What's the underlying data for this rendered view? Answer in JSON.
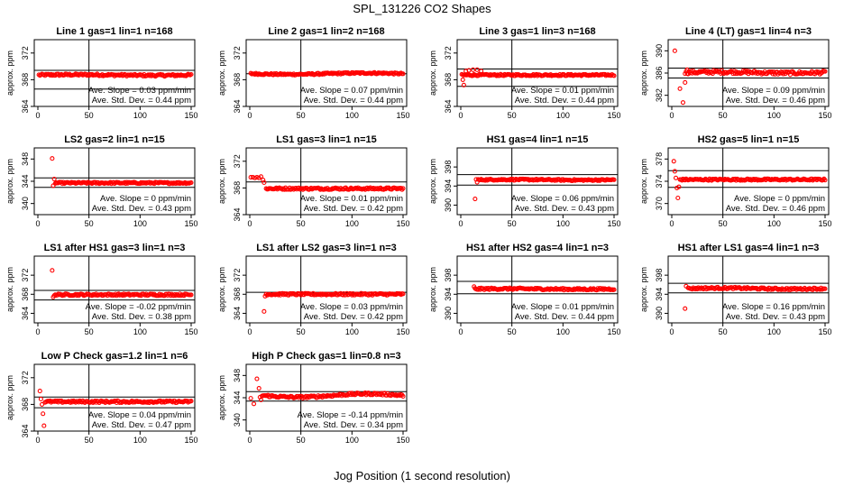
{
  "figure": {
    "title": "SPL_131226  CO2 Shapes",
    "xlabel": "Jog Position (1 second resolution)"
  },
  "chart_data": [
    {
      "type": "scatter",
      "title": "Line 1 gas=1 lin=1 n=168",
      "ylabel": "approx. ppm",
      "xlim": [
        0,
        150
      ],
      "ylim": [
        364,
        374
      ],
      "yticks": [
        364,
        368,
        372
      ],
      "xticks": [
        0,
        50,
        100,
        150
      ],
      "vline": 50,
      "hlines": [
        369.4,
        366.6
      ],
      "color": "#ff0000",
      "slope": "Ave. Slope = 0.03 ppm/min",
      "stddev": "Ave. Std. Dev. = 0.44 ppm",
      "series": [
        {
          "x0": 1,
          "x1": 150,
          "base": 368.7,
          "noise": 0.15,
          "drift": 0.05,
          "spikes": []
        }
      ]
    },
    {
      "type": "scatter",
      "title": "Line 2 gas=1 lin=2 n=168",
      "ylabel": "approx. ppm",
      "xlim": [
        0,
        150
      ],
      "ylim": [
        364,
        374
      ],
      "yticks": [
        364,
        368,
        372
      ],
      "xticks": [
        0,
        50,
        100,
        150
      ],
      "vline": 50,
      "hlines": [
        368.9,
        null
      ],
      "color": "#ff0000",
      "slope": "Ave. Slope = 0.07 ppm/min",
      "stddev": "Ave. Std. Dev. = 0.44 ppm",
      "series": [
        {
          "x0": 1,
          "x1": 150,
          "base": 368.9,
          "noise": 0.12,
          "drift": -0.1,
          "spikes": []
        }
      ]
    },
    {
      "type": "scatter",
      "title": "Line 3 gas=1 lin=3 n=168",
      "ylabel": "approx. ppm",
      "xlim": [
        0,
        150
      ],
      "ylim": [
        364,
        374
      ],
      "yticks": [
        364,
        368,
        372
      ],
      "xticks": [
        0,
        50,
        100,
        150
      ],
      "vline": 50,
      "hlines": [
        369.6,
        367.0
      ],
      "color": "#ff0000",
      "slope": "Ave. Slope = 0.01 ppm/min",
      "stddev": "Ave. Std. Dev. = 0.44 ppm",
      "series": [
        {
          "x0": 1,
          "x1": 150,
          "base": 368.7,
          "noise": 0.12,
          "drift": 0,
          "spikes": [
            [
              2,
              368.0
            ],
            [
              3,
              367.2
            ],
            [
              5,
              369.3
            ],
            [
              8,
              369.4
            ],
            [
              12,
              369.5
            ],
            [
              16,
              369.5
            ],
            [
              20,
              369.3
            ]
          ]
        }
      ]
    },
    {
      "type": "scatter",
      "title": "Line 4 (LT) gas=1 lin=4 n=3",
      "ylabel": "approx. ppm",
      "xlim": [
        0,
        150
      ],
      "ylim": [
        380,
        392
      ],
      "yticks": [
        382,
        386,
        390
      ],
      "xticks": [
        0,
        50,
        100,
        150
      ],
      "vline": 50,
      "hlines": [
        386.9,
        385.1
      ],
      "color": "#ff0000",
      "slope": "Ave. Slope = 0.09 ppm/min",
      "stddev": "Ave. Std. Dev. = 0.46 ppm",
      "series": [
        {
          "x0": 13,
          "x1": 150,
          "base": 386.1,
          "noise": 0.3,
          "drift": 0.1,
          "spikes": [
            [
              3,
              390.0
            ],
            [
              8,
              383.2
            ],
            [
              11,
              380.7
            ],
            [
              13,
              384.3
            ],
            [
              15,
              386.6
            ]
          ]
        }
      ]
    },
    {
      "type": "scatter",
      "title": "LS2 gas=2 lin=1 n=15",
      "ylabel": "approx. ppm",
      "xlim": [
        0,
        150
      ],
      "ylim": [
        338,
        350
      ],
      "yticks": [
        340,
        344,
        348
      ],
      "xticks": [
        0,
        50,
        100,
        150
      ],
      "vline": 50,
      "hlines": [
        344.6,
        342.9
      ],
      "color": "#ff0000",
      "slope": "Ave. Slope = 0 ppm/min",
      "stddev": "Ave. Std. Dev. = 0.43 ppm",
      "series": [
        {
          "x0": 17,
          "x1": 150,
          "base": 343.7,
          "noise": 0.15,
          "drift": 0,
          "spikes": [
            [
              14,
              348.1
            ],
            [
              15,
              343.2
            ],
            [
              16,
              344.4
            ]
          ]
        }
      ]
    },
    {
      "type": "scatter",
      "title": "LS1 gas=3 lin=1 n=15",
      "ylabel": "approx. ppm",
      "xlim": [
        0,
        150
      ],
      "ylim": [
        364,
        374
      ],
      "yticks": [
        364,
        368,
        372
      ],
      "xticks": [
        0,
        50,
        100,
        150
      ],
      "vline": 50,
      "hlines": [
        368.9,
        null
      ],
      "color": "#ff0000",
      "slope": "Ave. Slope = 0.01 ppm/min",
      "stddev": "Ave. Std. Dev. = 0.42 ppm",
      "series": [
        {
          "x0": 16,
          "x1": 150,
          "base": 367.9,
          "noise": 0.15,
          "drift": 0,
          "spikes": [
            [
              1,
              369.6
            ],
            [
              3,
              369.6
            ],
            [
              5,
              369.5
            ],
            [
              7,
              369.6
            ],
            [
              9,
              369.5
            ],
            [
              11,
              369.7
            ],
            [
              13,
              369.2
            ],
            [
              14,
              368.8
            ]
          ]
        }
      ]
    },
    {
      "type": "scatter",
      "title": "HS1 gas=4 lin=1 n=15",
      "ylabel": "approx. ppm",
      "xlim": [
        0,
        150
      ],
      "ylim": [
        388,
        402
      ],
      "yticks": [
        390,
        394,
        398
      ],
      "xticks": [
        0,
        50,
        100,
        150
      ],
      "vline": 50,
      "hlines": [
        396.4,
        394.2
      ],
      "color": "#ff0000",
      "slope": "Ave. Slope = 0.06 ppm/min",
      "stddev": "Ave. Std. Dev. = 0.43 ppm",
      "series": [
        {
          "x0": 17,
          "x1": 150,
          "base": 395.3,
          "noise": 0.15,
          "drift": 0.05,
          "spikes": [
            [
              14,
              391.3
            ],
            [
              15,
              395.4
            ],
            [
              16,
              394.8
            ]
          ]
        }
      ]
    },
    {
      "type": "scatter",
      "title": "HS2 gas=5 lin=1 n=15",
      "ylabel": "approx. ppm",
      "xlim": [
        0,
        150
      ],
      "ylim": [
        368,
        380
      ],
      "yticks": [
        370,
        374,
        378
      ],
      "xticks": [
        0,
        50,
        100,
        150
      ],
      "vline": 50,
      "hlines": [
        375.9,
        372.9
      ],
      "color": "#ff0000",
      "slope": "Ave. Slope = 0 ppm/min",
      "stddev": "Ave. Std. Dev. = 0.46 ppm",
      "series": [
        {
          "x0": 8,
          "x1": 150,
          "base": 374.3,
          "noise": 0.15,
          "drift": 0,
          "spikes": [
            [
              2,
              377.6
            ],
            [
              3,
              375.8
            ],
            [
              4,
              374.6
            ],
            [
              5,
              372.8
            ],
            [
              6,
              371.0
            ],
            [
              7,
              373.0
            ]
          ]
        }
      ]
    },
    {
      "type": "scatter",
      "title": "LS1 after HS1 gas=3 lin=1 n=3",
      "ylabel": "approx. ppm",
      "xlim": [
        0,
        150
      ],
      "ylim": [
        362,
        376
      ],
      "yticks": [
        364,
        368,
        372
      ],
      "xticks": [
        0,
        50,
        100,
        150
      ],
      "vline": 50,
      "hlines": [
        368.8,
        366.8
      ],
      "color": "#ff0000",
      "slope": "Ave. Slope = -0.02 ppm/min",
      "stddev": "Ave. Std. Dev. = 0.38 ppm",
      "series": [
        {
          "x0": 16,
          "x1": 150,
          "base": 367.9,
          "noise": 0.2,
          "drift": 0,
          "spikes": [
            [
              14,
              373.0
            ],
            [
              15,
              367.4
            ]
          ]
        }
      ]
    },
    {
      "type": "scatter",
      "title": "LS1 after LS2 gas=3 lin=1 n=3",
      "ylabel": "approx. ppm",
      "xlim": [
        0,
        150
      ],
      "ylim": [
        362,
        376
      ],
      "yticks": [
        364,
        368,
        372
      ],
      "xticks": [
        0,
        50,
        100,
        150
      ],
      "vline": 50,
      "hlines": [
        368.4,
        null
      ],
      "color": "#ff0000",
      "slope": "Ave. Slope = 0.03 ppm/min",
      "stddev": "Ave. Std. Dev. = 0.42 ppm",
      "series": [
        {
          "x0": 16,
          "x1": 150,
          "base": 368.0,
          "noise": 0.2,
          "drift": 0,
          "spikes": [
            [
              14,
              364.4
            ],
            [
              15,
              367.6
            ]
          ]
        }
      ]
    },
    {
      "type": "scatter",
      "title": "HS1 after HS2 gas=4 lin=1 n=3",
      "ylabel": "approx. ppm",
      "xlim": [
        0,
        150
      ],
      "ylim": [
        388,
        402
      ],
      "yticks": [
        390,
        394,
        398
      ],
      "xticks": [
        0,
        50,
        100,
        150
      ],
      "vline": 50,
      "hlines": [
        396.7,
        394.1
      ],
      "color": "#ff0000",
      "slope": "Ave. Slope = 0.01 ppm/min",
      "stddev": "Ave. Std. Dev. = 0.44 ppm",
      "series": [
        {
          "x0": 14,
          "x1": 150,
          "base": 395.1,
          "noise": 0.2,
          "drift": 0.05,
          "spikes": [
            [
              13,
              395.6
            ]
          ]
        }
      ]
    },
    {
      "type": "scatter",
      "title": "HS1 after LS1 gas=4 lin=1 n=3",
      "ylabel": "approx. ppm",
      "xlim": [
        0,
        150
      ],
      "ylim": [
        388,
        402
      ],
      "yticks": [
        390,
        394,
        398
      ],
      "xticks": [
        0,
        50,
        100,
        150
      ],
      "vline": 50,
      "hlines": [
        396.3,
        394.3
      ],
      "color": "#ff0000",
      "slope": "Ave. Slope = 0.16 ppm/min",
      "stddev": "Ave. Std. Dev. = 0.43 ppm",
      "series": [
        {
          "x0": 16,
          "x1": 150,
          "base": 395.2,
          "noise": 0.2,
          "drift": 0.1,
          "spikes": [
            [
              13,
              391.0
            ],
            [
              14,
              395.7
            ]
          ]
        }
      ]
    },
    {
      "type": "scatter",
      "title": "Low P Check gas=1.2 lin=1 n=6",
      "ylabel": "approx. ppm",
      "xlim": [
        0,
        150
      ],
      "ylim": [
        364,
        374
      ],
      "yticks": [
        364,
        368,
        372
      ],
      "xticks": [
        0,
        50,
        100,
        150
      ],
      "vline": 50,
      "hlines": [
        369.1,
        367.5
      ],
      "color": "#ff0000",
      "slope": "Ave. Slope = 0.04 ppm/min",
      "stddev": "Ave. Std. Dev. = 0.47 ppm",
      "series": [
        {
          "x0": 7,
          "x1": 150,
          "base": 368.4,
          "noise": 0.15,
          "drift": 0,
          "spikes": [
            [
              2,
              370.0
            ],
            [
              3,
              368.8
            ],
            [
              4,
              368.0
            ],
            [
              5,
              366.6
            ],
            [
              6,
              364.8
            ]
          ]
        }
      ]
    },
    {
      "type": "scatter",
      "title": "High P Check gas=1 lin=0.8 n=3",
      "ylabel": "approx. ppm",
      "xlim": [
        0,
        150
      ],
      "ylim": [
        338,
        350
      ],
      "yticks": [
        340,
        344,
        348
      ],
      "xticks": [
        0,
        50,
        100,
        150
      ],
      "vline": 50,
      "hlines": [
        345.1,
        343.4
      ],
      "color": "#ff0000",
      "slope": "Ave. Slope = -0.14 ppm/min",
      "stddev": "Ave. Std. Dev. = 0.34 ppm",
      "series": [
        {
          "x0": 12,
          "x1": 150,
          "base": 344.4,
          "noise": 0.2,
          "drift": -0.3,
          "spikes": [
            [
              1,
              343.9
            ],
            [
              4,
              342.9
            ],
            [
              7,
              347.4
            ],
            [
              9,
              345.7
            ],
            [
              10,
              344.1
            ],
            [
              11,
              343.6
            ]
          ]
        }
      ]
    }
  ]
}
